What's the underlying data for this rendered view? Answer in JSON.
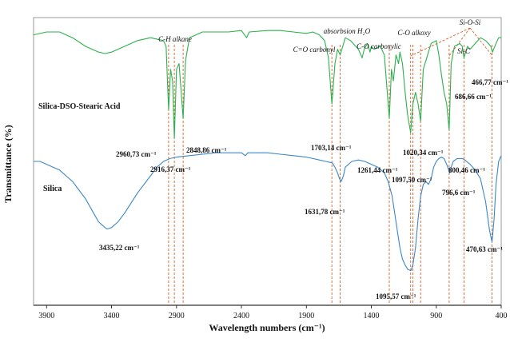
{
  "chart_data": {
    "type": "line",
    "xlabel": "Wavelength numbers (cm⁻¹)",
    "ylabel": "Transmittance (%)",
    "xlim": [
      4000,
      400
    ],
    "x_reversed": true,
    "x_ticks": [
      "3900",
      "3400",
      "2900",
      "2400",
      "1900",
      "1400",
      "900",
      "400"
    ],
    "y_ticks_shown": false,
    "grid": false,
    "series": [
      {
        "name": "Silica-DSO-Stearic Acid",
        "color": "#2bb24c",
        "points": [
          [
            4000,
            94
          ],
          [
            3900,
            95
          ],
          [
            3800,
            95
          ],
          [
            3700,
            93
          ],
          [
            3600,
            90
          ],
          [
            3500,
            88
          ],
          [
            3450,
            87.5
          ],
          [
            3400,
            88
          ],
          [
            3300,
            90
          ],
          [
            3200,
            92
          ],
          [
            3100,
            93
          ],
          [
            3000,
            92
          ],
          [
            2980,
            90
          ],
          [
            2960.73,
            68
          ],
          [
            2945,
            82
          ],
          [
            2930,
            78
          ],
          [
            2916.37,
            58
          ],
          [
            2900,
            82
          ],
          [
            2880,
            84
          ],
          [
            2870,
            78
          ],
          [
            2848.86,
            65
          ],
          [
            2830,
            85
          ],
          [
            2800,
            93
          ],
          [
            2700,
            95
          ],
          [
            2600,
            95
          ],
          [
            2500,
            95
          ],
          [
            2400,
            95.5
          ],
          [
            2360,
            93
          ],
          [
            2340,
            95
          ],
          [
            2200,
            95.5
          ],
          [
            2100,
            95.5
          ],
          [
            2000,
            95
          ],
          [
            1900,
            94.5
          ],
          [
            1850,
            95
          ],
          [
            1800,
            94
          ],
          [
            1760,
            92
          ],
          [
            1730,
            86
          ],
          [
            1703.14,
            70
          ],
          [
            1680,
            84
          ],
          [
            1660,
            89
          ],
          [
            1640,
            87
          ],
          [
            1620,
            90
          ],
          [
            1600,
            93
          ],
          [
            1560,
            92
          ],
          [
            1500,
            89
          ],
          [
            1470,
            86
          ],
          [
            1455,
            89
          ],
          [
            1430,
            91
          ],
          [
            1410,
            88
          ],
          [
            1400,
            90
          ],
          [
            1380,
            89
          ],
          [
            1330,
            90
          ],
          [
            1300,
            87
          ],
          [
            1261.44,
            65
          ],
          [
            1245,
            82
          ],
          [
            1230,
            78
          ],
          [
            1210,
            87
          ],
          [
            1190,
            84
          ],
          [
            1180,
            88
          ],
          [
            1160,
            84
          ],
          [
            1140,
            74
          ],
          [
            1120,
            66
          ],
          [
            1097.5,
            60
          ],
          [
            1080,
            70
          ],
          [
            1060,
            74
          ],
          [
            1040,
            70
          ],
          [
            1020.34,
            64
          ],
          [
            1000,
            82
          ],
          [
            960,
            88
          ],
          [
            940,
            91
          ],
          [
            900,
            92
          ],
          [
            880,
            87
          ],
          [
            860,
            80
          ],
          [
            840,
            74
          ],
          [
            820,
            70
          ],
          [
            800.46,
            61
          ],
          [
            785,
            84
          ],
          [
            760,
            90
          ],
          [
            720,
            91
          ],
          [
            700,
            90
          ],
          [
            686.66,
            86
          ],
          [
            660,
            90
          ],
          [
            640,
            89
          ],
          [
            620,
            90
          ],
          [
            600,
            91
          ],
          [
            560,
            93
          ],
          [
            520,
            92
          ],
          [
            500,
            91
          ],
          [
            480,
            90
          ],
          [
            466.77,
            88
          ],
          [
            440,
            91
          ],
          [
            420,
            93
          ],
          [
            400,
            93
          ]
        ]
      },
      {
        "name": "Silica",
        "color": "#3a87c9",
        "points": [
          [
            4000,
            50
          ],
          [
            3950,
            50
          ],
          [
            3900,
            49
          ],
          [
            3850,
            48
          ],
          [
            3800,
            47
          ],
          [
            3750,
            45
          ],
          [
            3700,
            43
          ],
          [
            3650,
            40
          ],
          [
            3600,
            37
          ],
          [
            3550,
            33
          ],
          [
            3500,
            29
          ],
          [
            3450,
            27
          ],
          [
            3435.22,
            26.5
          ],
          [
            3400,
            27
          ],
          [
            3350,
            29
          ],
          [
            3300,
            32
          ],
          [
            3250,
            35.5
          ],
          [
            3200,
            39
          ],
          [
            3150,
            42
          ],
          [
            3100,
            45
          ],
          [
            3050,
            48
          ],
          [
            3000,
            50
          ],
          [
            2950,
            51
          ],
          [
            2900,
            51.5
          ],
          [
            2800,
            52
          ],
          [
            2700,
            52.5
          ],
          [
            2600,
            53
          ],
          [
            2500,
            53
          ],
          [
            2400,
            53
          ],
          [
            2370,
            52
          ],
          [
            2350,
            53
          ],
          [
            2300,
            53
          ],
          [
            2200,
            53
          ],
          [
            2100,
            52.5
          ],
          [
            2000,
            52
          ],
          [
            1900,
            51.5
          ],
          [
            1850,
            51
          ],
          [
            1800,
            50.5
          ],
          [
            1750,
            50
          ],
          [
            1700,
            49.5
          ],
          [
            1680,
            48
          ],
          [
            1660,
            46
          ],
          [
            1645,
            44
          ],
          [
            1631.78,
            43
          ],
          [
            1615,
            45
          ],
          [
            1600,
            48
          ],
          [
            1550,
            50
          ],
          [
            1500,
            50.5
          ],
          [
            1450,
            50
          ],
          [
            1400,
            49
          ],
          [
            1350,
            48
          ],
          [
            1300,
            46
          ],
          [
            1270,
            43
          ],
          [
            1240,
            38
          ],
          [
            1220,
            32
          ],
          [
            1200,
            26
          ],
          [
            1180,
            20
          ],
          [
            1160,
            16
          ],
          [
            1140,
            14
          ],
          [
            1120,
            12.5
          ],
          [
            1095.57,
            12
          ],
          [
            1080,
            14
          ],
          [
            1060,
            20
          ],
          [
            1040,
            30
          ],
          [
            1020,
            38
          ],
          [
            1000,
            42
          ],
          [
            980,
            43
          ],
          [
            960,
            42
          ],
          [
            940,
            44
          ],
          [
            920,
            48
          ],
          [
            900,
            50
          ],
          [
            880,
            51
          ],
          [
            860,
            51.5
          ],
          [
            840,
            51
          ],
          [
            820,
            49
          ],
          [
            796.6,
            46
          ],
          [
            785,
            48
          ],
          [
            770,
            50
          ],
          [
            740,
            51
          ],
          [
            700,
            51
          ],
          [
            680,
            50.5
          ],
          [
            640,
            49
          ],
          [
            600,
            47
          ],
          [
            560,
            44
          ],
          [
            520,
            36
          ],
          [
            490,
            26
          ],
          [
            470.63,
            22
          ],
          [
            455,
            30
          ],
          [
            440,
            42
          ],
          [
            420,
            50
          ],
          [
            400,
            52
          ]
        ]
      }
    ],
    "series_labels": [
      "Silica-DSO-Stearic Acid",
      "Silica"
    ],
    "peak_labels": [
      "2960,73 cm⁻¹",
      "2916,37 cm⁻¹",
      "2848,86 cm⁻¹",
      "1703,14 cm⁻¹",
      "1261,44 cm⁻¹",
      "1097,50 cm⁻¹",
      "1020,34 cm⁻¹",
      "800,46 cm⁻¹",
      "686,66 cm⁻¹",
      "466,77 cm⁻¹",
      "3435,22 cm⁻¹",
      "1631,78 cm⁻¹",
      "1095,57 cm⁻¹",
      "796,6 cm⁻¹",
      "470,63 cm⁻¹"
    ],
    "group_labels": [
      "C-H alkane",
      "absorbsion H₂O",
      "C=O carbonyl",
      "C-O carboxylic",
      "C-O alkoxy",
      "Si-O-Si",
      "Si-C"
    ],
    "reference_lines": [
      2960.73,
      2916.37,
      2848.86,
      1703.14,
      1640,
      1261.44,
      1097.5,
      1080,
      1020.34,
      800.46,
      686.66,
      470.63
    ]
  }
}
